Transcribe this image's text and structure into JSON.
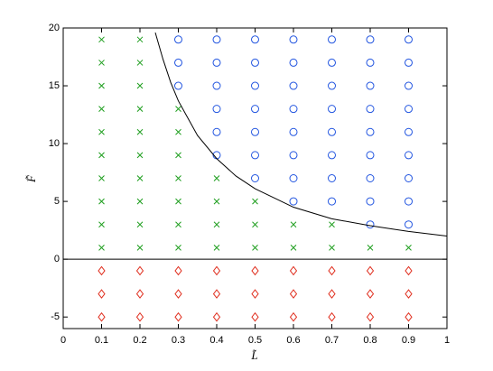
{
  "chart_data": {
    "type": "scatter",
    "xlabel": "L̃",
    "ylabel": "F̃",
    "xlim": [
      0,
      1
    ],
    "ylim": [
      -6,
      20
    ],
    "xticks": [
      0,
      0.1,
      0.2,
      0.3,
      0.4,
      0.5,
      0.6,
      0.7,
      0.8,
      0.9,
      1
    ],
    "yticks": [
      -5,
      0,
      5,
      10,
      15,
      20
    ],
    "grid": false,
    "hline": 0,
    "series": [
      {
        "marker": "x",
        "color": "#1e9e1e",
        "x": [
          0.1,
          0.1,
          0.1,
          0.1,
          0.1,
          0.1,
          0.1,
          0.1,
          0.1,
          0.1,
          0.2,
          0.2,
          0.2,
          0.2,
          0.2,
          0.2,
          0.2,
          0.2,
          0.2,
          0.2,
          0.3,
          0.3,
          0.3,
          0.3,
          0.3,
          0.3,
          0.3,
          0.4,
          0.4,
          0.4,
          0.4,
          0.5,
          0.5,
          0.5,
          0.6,
          0.6,
          0.7,
          0.7,
          0.8,
          0.9
        ],
        "y": [
          1,
          3,
          5,
          7,
          9,
          11,
          13,
          15,
          17,
          19,
          1,
          3,
          5,
          7,
          9,
          11,
          13,
          15,
          17,
          19,
          1,
          3,
          5,
          7,
          9,
          11,
          13,
          1,
          3,
          5,
          7,
          1,
          3,
          5,
          1,
          3,
          1,
          3,
          1,
          1
        ]
      },
      {
        "marker": "o",
        "color": "#2255e0",
        "x": [
          0.3,
          0.3,
          0.3,
          0.4,
          0.4,
          0.4,
          0.4,
          0.4,
          0.4,
          0.5,
          0.5,
          0.5,
          0.5,
          0.5,
          0.5,
          0.5,
          0.6,
          0.6,
          0.6,
          0.6,
          0.6,
          0.6,
          0.6,
          0.6,
          0.7,
          0.7,
          0.7,
          0.7,
          0.7,
          0.7,
          0.7,
          0.7,
          0.8,
          0.8,
          0.8,
          0.8,
          0.8,
          0.8,
          0.8,
          0.8,
          0.8,
          0.9,
          0.9,
          0.9,
          0.9,
          0.9,
          0.9,
          0.9,
          0.9,
          0.9
        ],
        "y": [
          15,
          17,
          19,
          9,
          11,
          13,
          15,
          17,
          19,
          7,
          9,
          11,
          13,
          15,
          17,
          19,
          5,
          7,
          9,
          11,
          13,
          15,
          17,
          19,
          5,
          7,
          9,
          11,
          13,
          15,
          17,
          19,
          3,
          5,
          7,
          9,
          11,
          13,
          15,
          17,
          19,
          3,
          5,
          7,
          9,
          11,
          13,
          15,
          17,
          19
        ]
      },
      {
        "marker": "diamond",
        "color": "#e03020",
        "x": [
          0.1,
          0.1,
          0.1,
          0.2,
          0.2,
          0.2,
          0.3,
          0.3,
          0.3,
          0.4,
          0.4,
          0.4,
          0.5,
          0.5,
          0.5,
          0.6,
          0.6,
          0.6,
          0.7,
          0.7,
          0.7,
          0.8,
          0.8,
          0.8,
          0.9,
          0.9,
          0.9
        ],
        "y": [
          -1,
          -3,
          -5,
          -1,
          -3,
          -5,
          -1,
          -3,
          -5,
          -1,
          -3,
          -5,
          -1,
          -3,
          -5,
          -1,
          -3,
          -5,
          -1,
          -3,
          -5,
          -1,
          -3,
          -5,
          -1,
          -3,
          -5
        ]
      },
      {
        "marker": "line",
        "color": "#000000",
        "x": [
          0.24,
          0.26,
          0.28,
          0.3,
          0.35,
          0.4,
          0.45,
          0.5,
          0.6,
          0.7,
          0.8,
          0.9,
          1.0
        ],
        "y": [
          19.6,
          17.3,
          15.3,
          13.7,
          10.7,
          8.7,
          7.2,
          6.1,
          4.5,
          3.5,
          2.9,
          2.4,
          2.0
        ]
      }
    ]
  }
}
